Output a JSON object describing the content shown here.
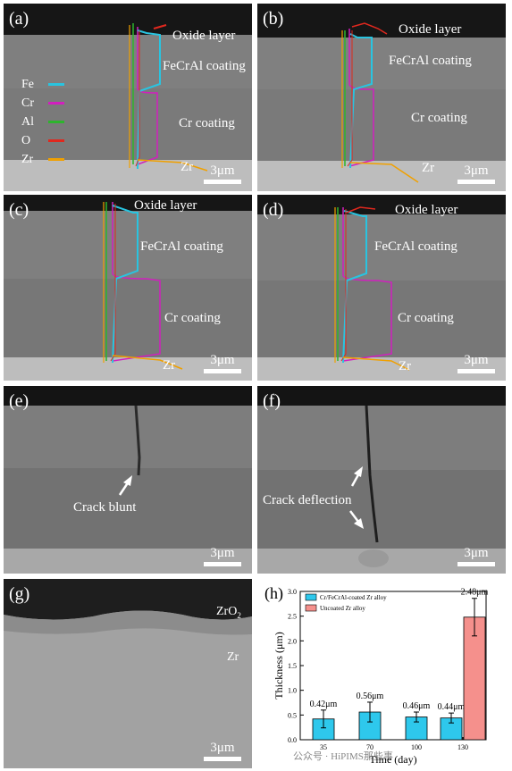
{
  "panels": {
    "a": {
      "label": "(a)",
      "annotations": {
        "oxide": "Oxide layer",
        "fecral": "FeCrAl coating",
        "cr": "Cr coating",
        "zr": "Zr"
      },
      "scale": "3μm"
    },
    "b": {
      "label": "(b)",
      "annotations": {
        "oxide": "Oxide layer",
        "fecral": "FeCrAl coating",
        "cr": "Cr coating",
        "zr": "Zr"
      },
      "scale": "3μm"
    },
    "c": {
      "label": "(c)",
      "annotations": {
        "oxide": "Oxide layer",
        "fecral": "FeCrAl coating",
        "cr": "Cr coating",
        "zr": "Zr"
      },
      "scale": "3μm"
    },
    "d": {
      "label": "(d)",
      "annotations": {
        "oxide": "Oxide layer",
        "fecral": "FeCrAl coating",
        "cr": "Cr coating",
        "zr": "Zr"
      },
      "scale": "3μm"
    },
    "e": {
      "label": "(e)",
      "annotations": {
        "crack": "Crack blunt"
      },
      "scale": "3μm"
    },
    "f": {
      "label": "(f)",
      "annotations": {
        "crack": "Crack deflection"
      },
      "scale": "3μm"
    },
    "g": {
      "label": "(g)",
      "annotations": {
        "zro2": "ZrO",
        "zro2_sub": "2",
        "zr": "Zr"
      },
      "scale": "3μm"
    }
  },
  "legend_elements": [
    {
      "name": "Fe",
      "color": "#29c4e0"
    },
    {
      "name": "Cr",
      "color": "#d21fbf"
    },
    {
      "name": "Al",
      "color": "#2db52d"
    },
    {
      "name": "O",
      "color": "#e0281e"
    },
    {
      "name": "Zr",
      "color": "#f0a000"
    }
  ],
  "chart_data": {
    "type": "bar",
    "panel_label": "(h)",
    "xlabel": "Time (day)",
    "ylabel": "Thickness (μm)",
    "ylim": [
      0,
      3.0
    ],
    "yticks": [
      "0.0",
      "0.5",
      "1.0",
      "1.5",
      "2.0",
      "2.5",
      "3.0"
    ],
    "categories": [
      "35",
      "70",
      "100",
      "130"
    ],
    "series": [
      {
        "name": "Cr/FeCrAl-coated Zr alloy",
        "color": "#2ec8ec",
        "values": [
          0.42,
          0.56,
          0.46,
          0.44
        ],
        "errors": [
          0.18,
          0.2,
          0.1,
          0.1
        ],
        "labels": [
          "0.42μm",
          "0.56μm",
          "0.46μm",
          "0.44μm"
        ]
      },
      {
        "name": "Uncoated Zr alloy",
        "color": "#f5908c",
        "values": [
          null,
          null,
          null,
          2.48
        ],
        "errors": [
          null,
          null,
          null,
          0.38
        ],
        "labels": [
          null,
          null,
          null,
          "2.48μm"
        ]
      }
    ],
    "legend_position": "top-left"
  },
  "watermark": "公众号 · HiPIMS那些事"
}
